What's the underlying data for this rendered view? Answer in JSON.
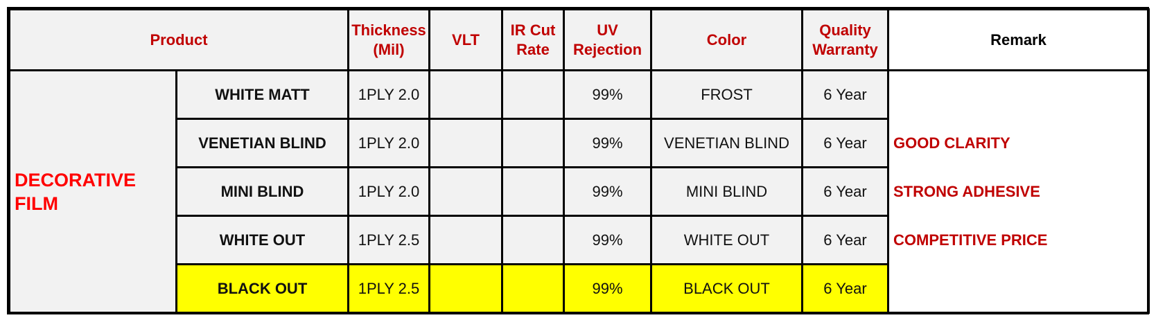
{
  "table": {
    "headers": {
      "product": "Product",
      "thickness_line1": "Thickness",
      "thickness_line2": "(Mil)",
      "vlt": "VLT",
      "ir_line1": "IR Cut",
      "ir_line2": "Rate",
      "uv_line1": "UV",
      "uv_line2": "Rejection",
      "color": "Color",
      "warranty_line1": "Quality",
      "warranty_line2": "Warranty",
      "remark": "Remark"
    },
    "category_line1": "DECORATIVE",
    "category_line2": "FILM",
    "rows": [
      {
        "name": "WHITE MATT",
        "thickness": "1PLY 2.0",
        "vlt": "",
        "ir": "",
        "uv": "99%",
        "color": "FROST",
        "warranty": "6 Year"
      },
      {
        "name": "VENETIAN BLIND",
        "thickness": "1PLY 2.0",
        "vlt": "",
        "ir": "",
        "uv": "99%",
        "color": "VENETIAN BLIND",
        "warranty": "6 Year"
      },
      {
        "name": "MINI BLIND",
        "thickness": "1PLY 2.0",
        "vlt": "",
        "ir": "",
        "uv": "99%",
        "color": "MINI BLIND",
        "warranty": "6 Year"
      },
      {
        "name": "WHITE OUT",
        "thickness": "1PLY 2.5",
        "vlt": "",
        "ir": "",
        "uv": "99%",
        "color": "WHITE OUT",
        "warranty": "6 Year"
      },
      {
        "name": "BLACK OUT",
        "thickness": "1PLY 2.5",
        "vlt": "",
        "ir": "",
        "uv": "99%",
        "color": "BLACK OUT",
        "warranty": "6 Year"
      }
    ],
    "remarks": [
      "GOOD CLARITY",
      "STRONG ADHESIVE",
      "COMPETITIVE PRICE"
    ],
    "colors": {
      "header_text": "#c00000",
      "category_text": "#ff0000",
      "highlight_row": "#ffff00",
      "cell_background": "#f2f2f2"
    }
  }
}
